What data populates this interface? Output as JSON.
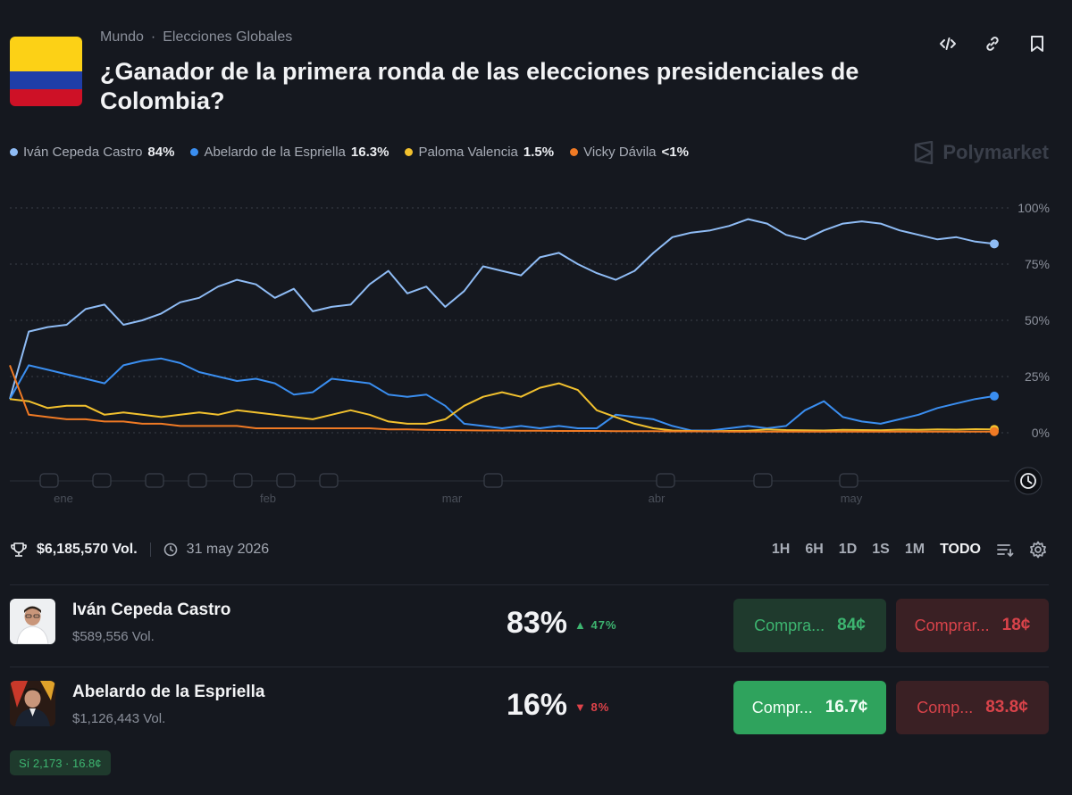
{
  "breadcrumb": {
    "category": "Mundo",
    "separator": "·",
    "subcategory": "Elecciones Globales"
  },
  "title": "¿Ganador de la primera ronda de las elecciones presidenciales de Colombia?",
  "icons": {
    "embed": "code-icon",
    "link": "link-icon",
    "bookmark": "bookmark-icon"
  },
  "brand": "Polymarket",
  "legend": [
    {
      "name": "Iván Cepeda Castro",
      "value": "84%",
      "color": "#8fbcf5"
    },
    {
      "name": "Abelardo de la Espriella",
      "value": "16.3%",
      "color": "#3a8ef0"
    },
    {
      "name": "Paloma Valencia",
      "value": "1.5%",
      "color": "#f2c12e"
    },
    {
      "name": "Vicky Dávila",
      "value": "<1%",
      "color": "#f07a24"
    }
  ],
  "chart_data": {
    "type": "line",
    "y_ticks": [
      "100%",
      "75%",
      "50%",
      "25%",
      "0%"
    ],
    "ylim": [
      0,
      100
    ],
    "x_ticks": [
      "ene",
      "feb",
      "mar",
      "abr",
      "may"
    ],
    "series": [
      {
        "name": "Iván Cepeda Castro",
        "color": "#8fbcf5",
        "values": [
          15,
          45,
          47,
          48,
          55,
          57,
          48,
          50,
          53,
          58,
          60,
          65,
          68,
          66,
          60,
          64,
          54,
          56,
          57,
          66,
          72,
          62,
          65,
          56,
          63,
          74,
          72,
          70,
          78,
          80,
          75,
          71,
          68,
          72,
          80,
          87,
          89,
          90,
          92,
          95,
          93,
          88,
          86,
          90,
          93,
          94,
          93,
          90,
          88,
          86,
          87,
          85,
          84
        ]
      },
      {
        "name": "Abelardo de la Espriella",
        "color": "#3a8ef0",
        "values": [
          15,
          30,
          28,
          26,
          24,
          22,
          30,
          32,
          33,
          31,
          27,
          25,
          23,
          24,
          22,
          17,
          18,
          24,
          23,
          22,
          17,
          16,
          17,
          12,
          4,
          3,
          2,
          3,
          2,
          3,
          2,
          2,
          8,
          7,
          6,
          3,
          1,
          1,
          2,
          3,
          2,
          3,
          10,
          14,
          7,
          5,
          4,
          6,
          8,
          11,
          13,
          15,
          16.3
        ]
      },
      {
        "name": "Paloma Valencia",
        "color": "#f2c12e",
        "values": [
          15,
          14,
          11,
          12,
          12,
          8,
          9,
          8,
          7,
          8,
          9,
          8,
          10,
          9,
          8,
          7,
          6,
          8,
          10,
          8,
          5,
          4,
          4,
          6,
          12,
          16,
          18,
          16,
          20,
          22,
          19,
          10,
          7,
          4,
          2,
          1,
          0.8,
          0.7,
          0.8,
          0.9,
          1.5,
          1.2,
          1.1,
          1.0,
          1.3,
          1.2,
          1.1,
          1.4,
          1.3,
          1.5,
          1.4,
          1.6,
          1.5
        ]
      },
      {
        "name": "Vicky Dávila",
        "color": "#f07a24",
        "values": [
          30,
          8,
          7,
          6,
          6,
          5,
          5,
          4,
          4,
          3,
          3,
          3,
          3,
          2,
          2,
          2,
          2,
          2,
          2,
          2,
          1.5,
          1.5,
          1.3,
          1.2,
          1.1,
          1.0,
          1.0,
          0.9,
          0.9,
          0.8,
          0.8,
          0.8,
          0.7,
          0.7,
          0.7,
          0.6,
          0.6,
          0.6,
          0.5,
          0.5,
          0.5,
          0.5,
          0.5,
          0.5,
          0.5,
          0.5,
          0.5,
          0.5,
          0.5,
          0.5,
          0.5,
          0.5,
          0.5
        ]
      }
    ]
  },
  "stats": {
    "volume": "$6,185,570 Vol.",
    "date": "31 may 2026"
  },
  "ranges": [
    "1H",
    "6H",
    "1D",
    "1S",
    "1M",
    "TODO"
  ],
  "active_range": "TODO",
  "outcomes": [
    {
      "name": "Iván Cepeda Castro",
      "volume": "$589,556 Vol.",
      "pct": "83%",
      "change": "47%",
      "direction": "up",
      "yes_label": "Compra...",
      "yes_price": "84¢",
      "no_label": "Comprar...",
      "no_price": "18¢"
    },
    {
      "name": "Abelardo de la Espriella",
      "volume": "$1,126,443 Vol.",
      "pct": "16%",
      "change": "8%",
      "direction": "down",
      "yes_label": "Compr...",
      "yes_price": "16.7¢",
      "no_label": "Comp...",
      "no_price": "83.8¢"
    }
  ],
  "pill": "Sí 2,173 · 16.8¢"
}
